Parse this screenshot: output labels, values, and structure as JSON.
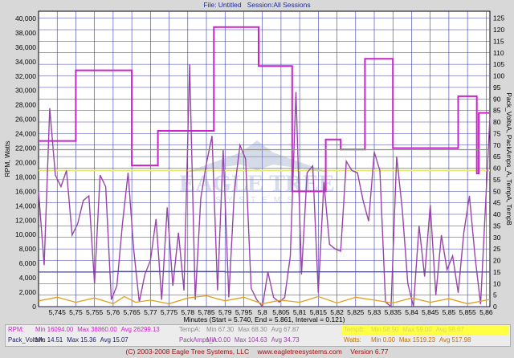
{
  "header": {
    "file": "File: Untitled",
    "session": "Session:All Sessions"
  },
  "chart_data": {
    "type": "line",
    "xlabel": "Minutes (Start = 5.740, End = 5.861, Interval = 0.121)",
    "ylabel_left": "RPM, Watts",
    "ylabel_right": "Pack_VoltsA, PackAmps_A, TempA, TempB",
    "x_range": [
      5.74,
      5.861
    ],
    "x_ticks": [
      "5,745",
      "5,75",
      "5,755",
      "5,76",
      "5,765",
      "5,77",
      "5,775",
      "5,78",
      "5,785",
      "5,79",
      "5,795",
      "5,8",
      "5,805",
      "5,81",
      "5,815",
      "5,82",
      "5,825",
      "5,83",
      "5,835",
      "5,84",
      "5,845",
      "5,85",
      "5,855",
      "5,86"
    ],
    "x_tick_values": [
      5.745,
      5.75,
      5.755,
      5.76,
      5.765,
      5.77,
      5.775,
      5.78,
      5.785,
      5.79,
      5.795,
      5.8,
      5.805,
      5.81,
      5.815,
      5.82,
      5.825,
      5.83,
      5.835,
      5.84,
      5.845,
      5.85,
      5.855,
      5.86
    ],
    "y_left_range": [
      0,
      41000
    ],
    "y_left_ticks": [
      "0",
      "2,000",
      "4,000",
      "6,000",
      "8,000",
      "10,000",
      "12,000",
      "14,000",
      "16,000",
      "18,000",
      "20,000",
      "22,000",
      "24,000",
      "26,000",
      "28,000",
      "30,000",
      "32,000",
      "34,000",
      "36,000",
      "38,000",
      "40,000"
    ],
    "y_right_range": [
      0,
      128
    ],
    "y_right_ticks": [
      "0",
      "5",
      "10",
      "15",
      "20",
      "25",
      "30",
      "35",
      "40",
      "45",
      "50",
      "55",
      "60",
      "65",
      "70",
      "75",
      "80",
      "85",
      "90",
      "95",
      "100",
      "105",
      "110",
      "115",
      "120",
      "125"
    ],
    "grid": true,
    "series": [
      {
        "name": "RPM",
        "axis": "left",
        "color": "#cc22cc",
        "step": true,
        "x": [
          5.74,
          5.749,
          5.75,
          5.757,
          5.764,
          5.765,
          5.771,
          5.772,
          5.7795,
          5.78,
          5.787,
          5.788,
          5.799,
          5.8,
          5.807,
          5.808,
          5.816,
          5.817,
          5.82,
          5.821,
          5.8275,
          5.828,
          5.8345,
          5.835,
          5.8435,
          5.844,
          5.8525,
          5.853,
          5.8575,
          5.858,
          5.861
        ],
        "y": [
          23000,
          23000,
          32800,
          32800,
          32800,
          19600,
          19600,
          24400,
          24400,
          24400,
          38800,
          38800,
          33400,
          33400,
          33400,
          16000,
          16000,
          23200,
          23200,
          21800,
          34400,
          34400,
          34400,
          22000,
          22000,
          22000,
          29200,
          29200,
          18500,
          26900,
          26900
        ]
      },
      {
        "name": "PackAmps_A",
        "axis": "right",
        "color": "#9944aa",
        "x": [
          5.74,
          5.7415,
          5.743,
          5.7445,
          5.746,
          5.7475,
          5.749,
          5.7505,
          5.752,
          5.7535,
          5.755,
          5.7565,
          5.758,
          5.7595,
          5.761,
          5.7625,
          5.764,
          5.7655,
          5.767,
          5.7685,
          5.77,
          5.7715,
          5.773,
          5.7745,
          5.776,
          5.7775,
          5.779,
          5.7805,
          5.782,
          5.7835,
          5.785,
          5.7865,
          5.788,
          5.7895,
          5.791,
          5.7925,
          5.794,
          5.7955,
          5.797,
          5.7985,
          5.8,
          5.8015,
          5.803,
          5.8045,
          5.806,
          5.8075,
          5.809,
          5.8105,
          5.812,
          5.8135,
          5.815,
          5.8165,
          5.818,
          5.8195,
          5.821,
          5.8225,
          5.824,
          5.8255,
          5.827,
          5.8285,
          5.83,
          5.8315,
          5.833,
          5.8345,
          5.836,
          5.8375,
          5.839,
          5.8405,
          5.842,
          5.8435,
          5.845,
          5.8465,
          5.848,
          5.8495,
          5.851,
          5.8525,
          5.854,
          5.8555,
          5.857,
          5.8585,
          5.861
        ],
        "y": [
          50,
          18,
          86,
          57,
          52,
          59,
          31,
          36,
          46,
          48,
          10,
          57,
          52,
          3,
          9,
          36,
          58,
          25,
          2,
          14,
          20,
          38,
          3,
          43,
          9,
          32,
          7,
          105,
          3,
          47,
          62,
          74,
          7,
          68,
          4,
          50,
          70,
          64,
          8,
          3,
          0,
          15,
          4,
          2,
          4,
          22,
          93,
          14,
          58,
          61,
          6,
          54,
          27,
          25,
          24,
          63,
          59,
          58,
          46,
          37,
          67,
          59,
          2,
          0,
          65,
          42,
          10,
          0,
          35,
          13,
          44,
          5,
          31,
          16,
          22,
          6,
          32,
          48,
          22,
          1,
          82
        ]
      },
      {
        "name": "Pack_VoltsA",
        "axis": "right",
        "color": "#4a4a88",
        "step": true,
        "x": [
          5.74,
          5.76,
          5.79,
          5.81,
          5.84,
          5.861
        ],
        "y": [
          15.0,
          15.2,
          15.0,
          15.1,
          15.0,
          15.1
        ]
      },
      {
        "name": "TempA",
        "axis": "right",
        "color": "#8a8a8a",
        "x": [
          5.74,
          5.861
        ],
        "y": [
          68,
          68
        ]
      },
      {
        "name": "Watts",
        "axis": "left",
        "color": "#e0a020",
        "x": [
          5.74,
          5.745,
          5.75,
          5.755,
          5.76,
          5.763,
          5.766,
          5.77,
          5.775,
          5.78,
          5.785,
          5.79,
          5.795,
          5.8,
          5.805,
          5.81,
          5.815,
          5.82,
          5.825,
          5.83,
          5.835,
          5.84,
          5.845,
          5.85,
          5.855,
          5.861
        ],
        "y": [
          800,
          1300,
          600,
          1200,
          400,
          1400,
          600,
          900,
          400,
          1200,
          1500,
          800,
          1300,
          400,
          900,
          600,
          1400,
          500,
          1300,
          900,
          500,
          1200,
          600,
          1100,
          400,
          1000
        ]
      }
    ],
    "legend": {
      "row1": [
        {
          "name": "RPM:",
          "min": "Min 16094.00",
          "max": "Max 38860.00",
          "avg": "Avg 26299.13",
          "color": "#cc22cc"
        },
        {
          "name": "TempA:",
          "min": "Min 67.30",
          "max": "Max 68.30",
          "avg": "Avg 67.87",
          "color": "#8a8a8a"
        },
        {
          "name": "TempB:",
          "min": "Min 58.50",
          "max": "Max 59.00",
          "avg": "Avg 58.67",
          "color": "#d8d860"
        }
      ],
      "row2": [
        {
          "name": "Pack_VoltsA:",
          "min": "Min 14.51",
          "max": "Max 15.36",
          "avg": "Avg 15.07",
          "color": "#202060"
        },
        {
          "name": "PackAmps_A:",
          "min": "Min 0.00",
          "max": "Max 104.63",
          "avg": "Avg 34.73",
          "color": "#9944aa"
        },
        {
          "name": "Watts:",
          "min": "Min 0.00",
          "max": "Max 1519.23",
          "avg": "Avg 517.98",
          "color": "#c07000"
        }
      ]
    },
    "tempB_level": 59
  },
  "footer": {
    "copyright": "(C) 2003-2008 Eagle Tree Systems, LLC",
    "url": "www.eagletreesystems.com",
    "version": "Version 6.77"
  },
  "watermark": {
    "text": "EAGLE TREE",
    "sub": "SYSTEMS"
  }
}
